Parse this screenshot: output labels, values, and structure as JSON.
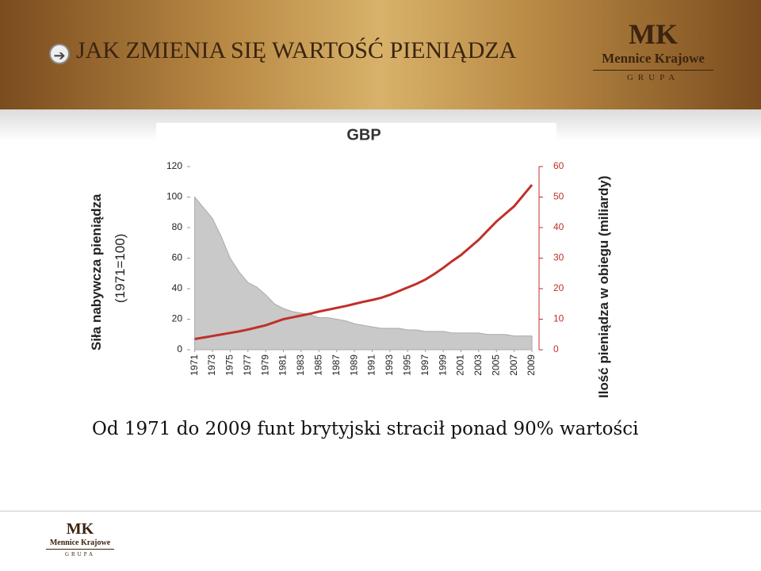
{
  "header": {
    "title": "JAK ZMIENIA SIĘ WARTOŚĆ PIENIĄDZA"
  },
  "logo": {
    "mark": "MK",
    "name": "Mennice Krajowe",
    "group": "GRUPA"
  },
  "footer_logo": {
    "mark": "MK",
    "name": "Mennice Krajowe",
    "group": "GRUPA"
  },
  "caption": "Od 1971 do 2009 funt brytyjski stracił ponad 90% wartości",
  "chart_data": {
    "type": "line",
    "title": "GBP",
    "ylabel": "Siła nabywcza pieniądza",
    "ylabel_note": "(1971=100)",
    "y2label": "Ilość pieniądza w obiegu (miliardy)",
    "x": [
      1971,
      1972,
      1973,
      1974,
      1975,
      1976,
      1977,
      1978,
      1979,
      1980,
      1981,
      1982,
      1983,
      1984,
      1985,
      1986,
      1987,
      1988,
      1989,
      1990,
      1991,
      1992,
      1993,
      1994,
      1995,
      1996,
      1997,
      1998,
      1999,
      2000,
      2001,
      2002,
      2003,
      2004,
      2005,
      2006,
      2007,
      2008,
      2009
    ],
    "xlim": [
      1970.5,
      2009.8
    ],
    "xticks": [
      1971,
      1973,
      1975,
      1977,
      1979,
      1981,
      1983,
      1985,
      1987,
      1989,
      1991,
      1993,
      1995,
      1997,
      1999,
      2001,
      2003,
      2005,
      2007,
      2009
    ],
    "ylim": [
      0,
      120
    ],
    "yticks": [
      0,
      20,
      40,
      60,
      80,
      100,
      120
    ],
    "y2lim": [
      0,
      60
    ],
    "y2ticks": [
      0,
      10,
      20,
      30,
      40,
      50,
      60
    ],
    "series": [
      {
        "kind": "area",
        "color": "#c9c9c9",
        "values": [
          100,
          93,
          86,
          74,
          60,
          51,
          44,
          41,
          36,
          30,
          27,
          25,
          24,
          23,
          21,
          21,
          20,
          19,
          17,
          16,
          15,
          14,
          14,
          14,
          13,
          13,
          12,
          12,
          12,
          11,
          11,
          11,
          11,
          10,
          10,
          10,
          9,
          9,
          9
        ]
      },
      {
        "kind": "line",
        "axis": "y2",
        "color": "#c0302a",
        "values": [
          3.5,
          4,
          4.5,
          5,
          5.5,
          6,
          6.6,
          7.3,
          8,
          9,
          10,
          10.6,
          11.2,
          11.8,
          12.5,
          13.1,
          13.7,
          14.3,
          15,
          15.7,
          16.3,
          17,
          18,
          19.2,
          20.4,
          21.6,
          23,
          24.8,
          26.8,
          29,
          31,
          33.5,
          36,
          39,
          42,
          44.5,
          47,
          50.5,
          54
        ]
      }
    ]
  }
}
